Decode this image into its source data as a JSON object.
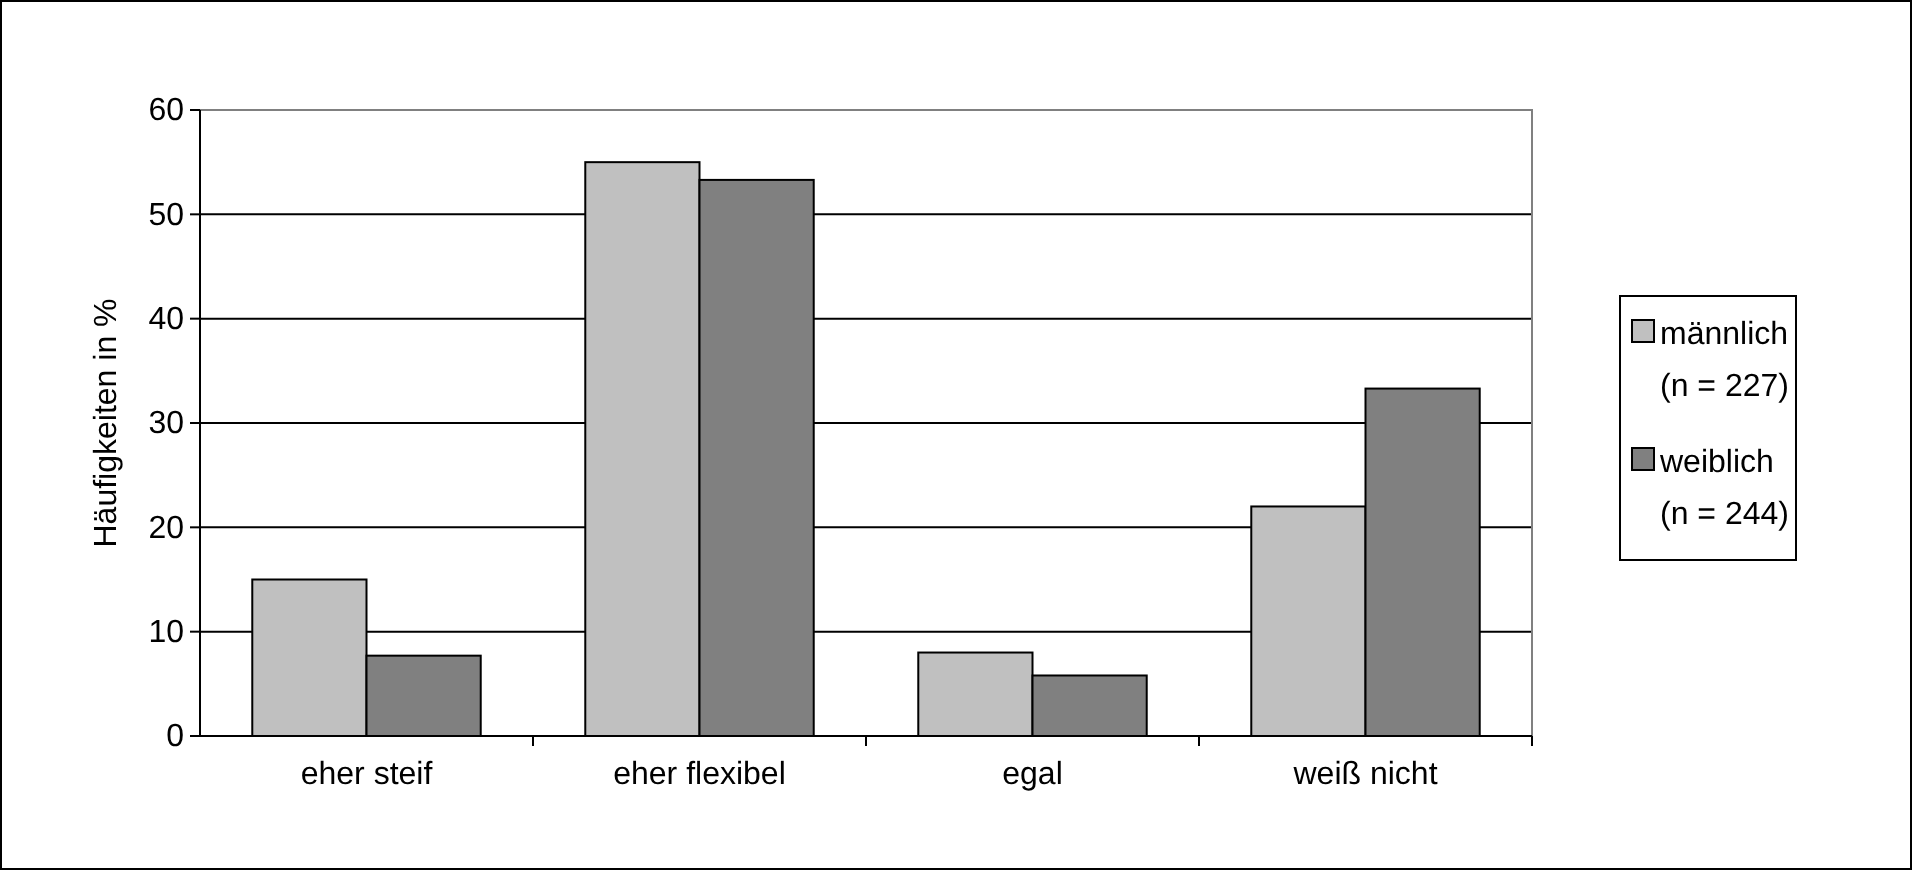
{
  "chart_data": {
    "type": "bar",
    "ylabel": "Häufigkeiten in %",
    "categories": [
      "eher steif",
      "eher flexibel",
      "egal",
      "weiß nicht"
    ],
    "series": [
      {
        "name": "männlich (n = 227)",
        "color": "#c0c0c0",
        "values": [
          15,
          55,
          8,
          22
        ]
      },
      {
        "name": "weiblich (n = 244)",
        "color": "#808080",
        "values": [
          7.7,
          53.3,
          5.8,
          33.3
        ]
      }
    ],
    "ylim": [
      0,
      60
    ],
    "yticks": [
      0,
      10,
      20,
      30,
      40,
      50,
      60
    ],
    "grid": "y",
    "legend": "right"
  }
}
